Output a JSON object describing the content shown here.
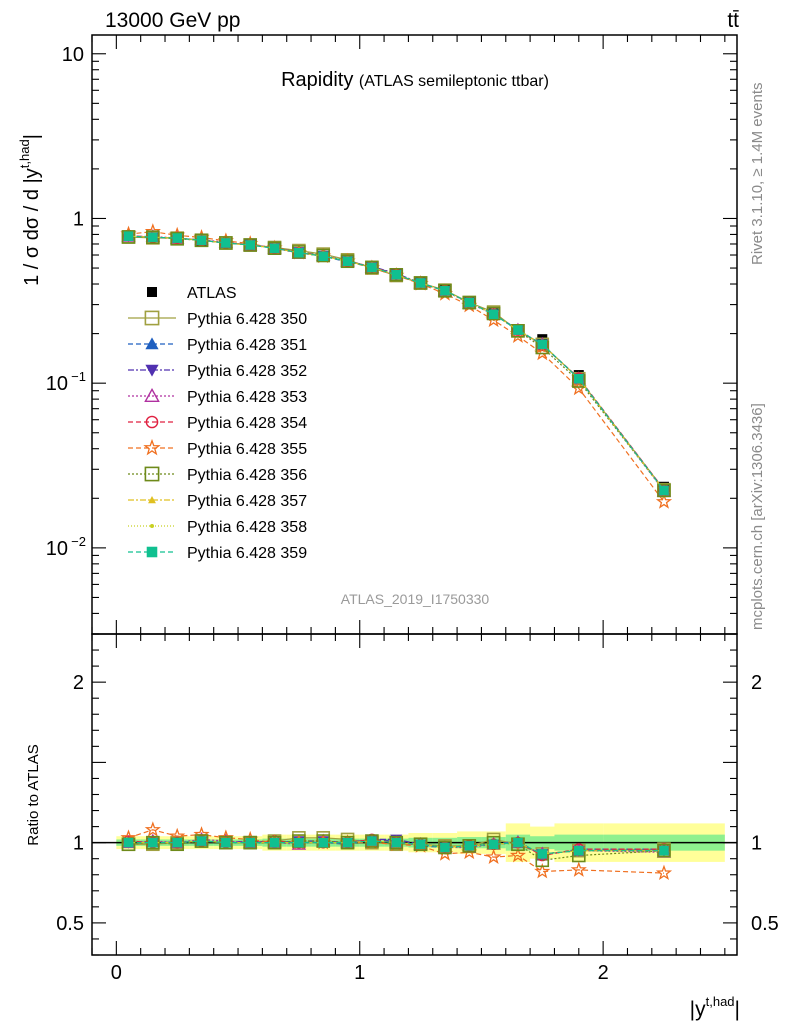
{
  "header": {
    "energy_label": "13000 GeV pp",
    "process_label": "tt̄",
    "title_main": "Rapidity",
    "title_sub": "(ATLAS semileptonic ttbar)",
    "analysis_id": "ATLAS_2019_I1750330",
    "side_label_rivet": "Rivet 3.1.10, ≥ 1.4M events",
    "side_label_mcplots": "mcplots.cern.ch [arXiv:1306.3436]"
  },
  "axes": {
    "ylabel_main_prefix": "1 / σ dσ / d |y",
    "ylabel_sup": "t,had",
    "ylabel_suffix": "|",
    "ylabel_ratio": "Ratio to ATLAS",
    "xlabel_main": "|y",
    "xlabel_sup": "t,had",
    "xlabel_suffix": "|"
  },
  "chart_data": {
    "type": "scatter",
    "x_bins": [
      0.05,
      0.15,
      0.25,
      0.35,
      0.45,
      0.55,
      0.65,
      0.75,
      0.85,
      0.95,
      1.05,
      1.15,
      1.25,
      1.35,
      1.45,
      1.55,
      1.65,
      1.75,
      1.9,
      2.25
    ],
    "xlim": [
      -0.1,
      2.55
    ],
    "xticks": [
      {
        "v": 0,
        "label": "0"
      },
      {
        "v": 1,
        "label": "1"
      },
      {
        "v": 2,
        "label": "2"
      }
    ],
    "main": {
      "yscale": "log",
      "ylim": [
        0.003,
        13
      ],
      "yticks": [
        {
          "v": 10,
          "label": "10"
        },
        {
          "v": 1,
          "label": "1"
        },
        {
          "v": 0.1,
          "label": "10^-1"
        },
        {
          "v": 0.01,
          "label": "10^-2"
        }
      ]
    },
    "ratio": {
      "ylim": [
        0.3,
        2.3
      ],
      "yticks": [
        {
          "v": 2,
          "label": "2"
        },
        {
          "v": 1,
          "label": "1"
        },
        {
          "v": 0.5,
          "label": "0.5"
        }
      ],
      "band_green": [
        0.02,
        0.02,
        0.02,
        0.02,
        0.02,
        0.02,
        0.025,
        0.025,
        0.025,
        0.025,
        0.025,
        0.025,
        0.03,
        0.03,
        0.035,
        0.035,
        0.05,
        0.04,
        0.05,
        0.05
      ],
      "band_yellow": [
        0.04,
        0.04,
        0.04,
        0.04,
        0.04,
        0.04,
        0.05,
        0.05,
        0.05,
        0.05,
        0.05,
        0.05,
        0.06,
        0.06,
        0.07,
        0.07,
        0.12,
        0.1,
        0.12,
        0.12
      ]
    },
    "data": {
      "name": "ATLAS",
      "values": [
        0.78,
        0.77,
        0.76,
        0.73,
        0.71,
        0.69,
        0.66,
        0.62,
        0.59,
        0.55,
        0.5,
        0.455,
        0.41,
        0.375,
        0.315,
        0.265,
        0.21,
        0.185,
        0.112,
        0.0235
      ]
    },
    "series": [
      {
        "name": "Pythia 6.428 350",
        "color": "#a0a040",
        "marker": "square-open",
        "dash": "",
        "ratio": [
          0.99,
          0.99,
          1.0,
          1.01,
          1.0,
          1.0,
          1.01,
          1.03,
          1.03,
          1.02,
          1.0,
          0.99,
          0.99,
          0.98,
          0.98,
          1.02,
          0.99,
          0.93,
          0.95,
          0.96
        ]
      },
      {
        "name": "Pythia 6.428 351",
        "color": "#1f5fc0",
        "marker": "triangle-up",
        "dash": "5,3",
        "ratio": [
          1.0,
          1.0,
          1.0,
          1.01,
          1.0,
          1.0,
          1.0,
          1.0,
          1.0,
          0.99,
          1.02,
          1.01,
          0.98,
          0.97,
          0.98,
          0.99,
          1.01,
          0.92,
          0.96,
          0.96
        ]
      },
      {
        "name": "Pythia 6.428 352",
        "color": "#5030b0",
        "marker": "triangle-down",
        "dash": "6,2,2,2",
        "ratio": [
          1.0,
          1.0,
          1.0,
          1.01,
          1.0,
          1.01,
          1.0,
          1.01,
          1.01,
          1.0,
          1.02,
          1.02,
          0.99,
          0.97,
          0.98,
          0.99,
          1.0,
          0.93,
          0.95,
          0.95
        ]
      },
      {
        "name": "Pythia 6.428 353",
        "color": "#b030a0",
        "marker": "triangle-open",
        "dash": "2,2",
        "ratio": [
          1.0,
          1.01,
          1.0,
          1.02,
          1.01,
          1.0,
          1.0,
          0.99,
          1.01,
          1.0,
          1.01,
          1.0,
          0.99,
          0.97,
          0.97,
          0.99,
          1.0,
          0.93,
          0.95,
          0.94
        ]
      },
      {
        "name": "Pythia 6.428 354",
        "color": "#e02040",
        "marker": "circle-open",
        "dash": "5,3",
        "ratio": [
          1.01,
          1.0,
          1.0,
          1.01,
          1.0,
          1.0,
          1.01,
          1.0,
          1.0,
          1.0,
          1.02,
          1.0,
          0.99,
          0.97,
          0.98,
          0.99,
          1.0,
          0.92,
          0.96,
          0.96
        ]
      },
      {
        "name": "Pythia 6.428 355",
        "color": "#f07020",
        "marker": "star-open",
        "dash": "5,3",
        "ratio": [
          1.03,
          1.08,
          1.04,
          1.05,
          1.03,
          1.02,
          1.0,
          1.0,
          1.0,
          1.0,
          1.0,
          0.99,
          0.98,
          0.93,
          0.94,
          0.91,
          0.92,
          0.82,
          0.83,
          0.81
        ]
      },
      {
        "name": "Pythia 6.428 356",
        "color": "#6e8a1a",
        "marker": "square-open",
        "dash": "2,2",
        "ratio": [
          0.99,
          1.0,
          0.99,
          1.01,
          1.0,
          1.0,
          1.0,
          1.01,
          1.01,
          1.0,
          1.01,
          1.0,
          0.99,
          0.97,
          0.98,
          1.0,
          0.99,
          0.89,
          0.92,
          0.95
        ]
      },
      {
        "name": "Pythia 6.428 357",
        "color": "#e0c020",
        "marker": "tri-small",
        "dash": "6,2,2,2",
        "ratio": [
          1.0,
          1.0,
          1.0,
          1.01,
          1.0,
          1.0,
          1.0,
          1.0,
          1.0,
          1.0,
          1.01,
          1.0,
          0.99,
          0.97,
          0.98,
          0.99,
          1.0,
          0.93,
          0.95,
          0.95
        ]
      },
      {
        "name": "Pythia 6.428 358",
        "color": "#c8d020",
        "marker": "dot",
        "dash": "1,2",
        "ratio": [
          1.0,
          1.0,
          1.0,
          1.01,
          1.0,
          1.0,
          1.0,
          1.0,
          1.0,
          1.0,
          1.01,
          1.0,
          0.99,
          0.97,
          0.98,
          0.99,
          1.0,
          0.93,
          0.95,
          0.95
        ]
      },
      {
        "name": "Pythia 6.428 359",
        "color": "#10c090",
        "marker": "square-filled",
        "dash": "5,3",
        "ratio": [
          1.0,
          1.0,
          1.0,
          1.01,
          1.0,
          1.0,
          1.0,
          1.0,
          1.0,
          1.0,
          1.01,
          1.0,
          0.99,
          0.97,
          0.98,
          0.99,
          1.0,
          0.93,
          0.95,
          0.95
        ]
      }
    ]
  }
}
